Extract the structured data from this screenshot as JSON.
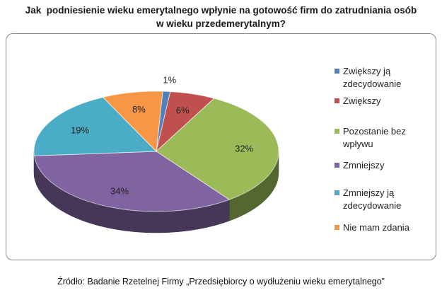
{
  "chart_data": {
    "type": "pie",
    "title": "Jak  podniesienie wieku emerytalnego wpłynie na gotowość firm do zatrudniania osób\nw wieku przedemerytalnym?",
    "source": "Źródło: Badanie Rzetelnej Firmy „Przedsiębiorcy o wydłużeniu wieku emerytalnego”",
    "legend_position": "right",
    "slices": [
      {
        "label": "Zwiększy ją zdecydowanie",
        "value": 1,
        "value_label": "1%",
        "color": "#4f81bd"
      },
      {
        "label": "Zwiększy",
        "value": 6,
        "value_label": "6%",
        "color": "#c0504d"
      },
      {
        "label": "Pozostanie bez wpływu",
        "value": 32,
        "value_label": "32%",
        "color": "#9bbb59"
      },
      {
        "label": "Zmniejszy",
        "value": 34,
        "value_label": "34%",
        "color": "#8064a2"
      },
      {
        "label": "Zmniejszy ją zdecydowanie",
        "value": 19,
        "value_label": "19%",
        "color": "#4bacc6"
      },
      {
        "label": "Nie mam zdania",
        "value": 8,
        "value_label": "8%",
        "color": "#f79646"
      }
    ]
  }
}
